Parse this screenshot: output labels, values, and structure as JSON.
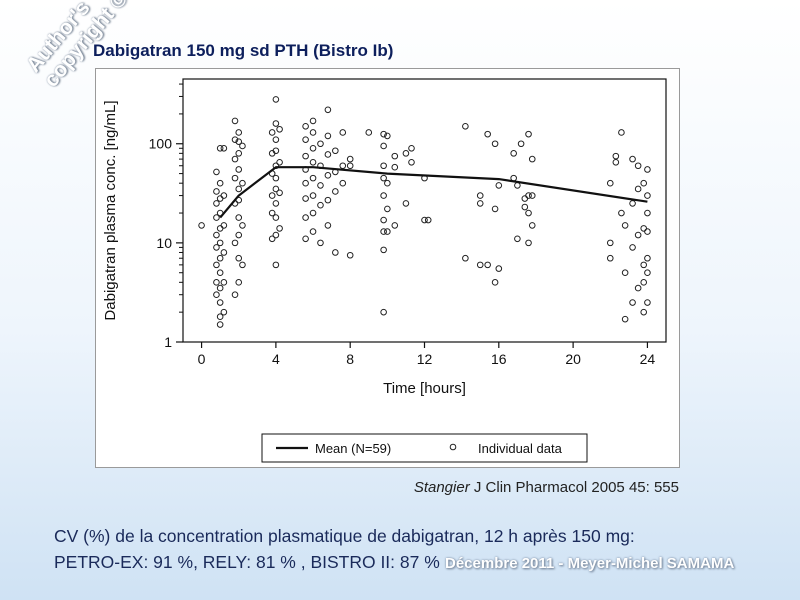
{
  "watermark": {
    "line1": "Author's",
    "line2": "copyright ©"
  },
  "slide_title": "Dabigatran 150 mg sd PTH (Bistro Ib)",
  "citation": {
    "author": "Stangier",
    "rest": " J Clin Pharmacol 2005 45: 555"
  },
  "cv_text": {
    "line1": "CV (%) de la concentration plasmatique de dabigatran, 12 h après 150 mg:",
    "line2": "PETRO-EX: 91 %, RELY: 81 % , BISTRO II: 87 %"
  },
  "footer_mark": "Décembre 2011 - Meyer-Michel SAMAMA",
  "colors": {
    "title": "#0d1f5c",
    "ink": "#111111"
  },
  "chart_data": {
    "type": "scatter",
    "title": "",
    "xlabel": "Time [hours]",
    "ylabel": "Dabigatran plasma conc. [ng/mL]",
    "xlim": [
      -1,
      25
    ],
    "ylim": [
      1,
      450
    ],
    "yscale": "log",
    "xticks": [
      0,
      4,
      8,
      12,
      16,
      20,
      24
    ],
    "xtick_labels": [
      "0",
      "4",
      "8",
      "12",
      "16",
      "20",
      "24"
    ],
    "yticks": [
      1,
      10,
      100
    ],
    "ytick_labels": [
      "1",
      "10",
      "100"
    ],
    "legend": {
      "position": "bottom",
      "entries": [
        {
          "label": "Mean (N=59)",
          "style": "line"
        },
        {
          "label": "Individual data",
          "style": "open-circle"
        }
      ]
    },
    "series": [
      {
        "name": "Mean (N=59)",
        "type": "line",
        "x": [
          1,
          2,
          4,
          6,
          10,
          16,
          24
        ],
        "y": [
          18,
          30,
          58,
          58,
          50,
          44,
          26
        ]
      },
      {
        "name": "Individual data",
        "type": "scatter",
        "points": [
          [
            0,
            15
          ],
          [
            0.8,
            3
          ],
          [
            0.8,
            4
          ],
          [
            0.8,
            6
          ],
          [
            0.8,
            9
          ],
          [
            0.8,
            12
          ],
          [
            0.8,
            18
          ],
          [
            0.8,
            25
          ],
          [
            0.8,
            33
          ],
          [
            0.8,
            52
          ],
          [
            1,
            1.5
          ],
          [
            1,
            1.8
          ],
          [
            1,
            2.5
          ],
          [
            1,
            3.5
          ],
          [
            1,
            5
          ],
          [
            1,
            7
          ],
          [
            1,
            10
          ],
          [
            1,
            14
          ],
          [
            1,
            20
          ],
          [
            1,
            28
          ],
          [
            1,
            40
          ],
          [
            1,
            90
          ],
          [
            1.2,
            2
          ],
          [
            1.2,
            4
          ],
          [
            1.2,
            8
          ],
          [
            1.2,
            15
          ],
          [
            1.2,
            30
          ],
          [
            1.2,
            90
          ],
          [
            1.8,
            3
          ],
          [
            1.8,
            10
          ],
          [
            1.8,
            25
          ],
          [
            1.8,
            45
          ],
          [
            1.8,
            70
          ],
          [
            1.8,
            110
          ],
          [
            1.8,
            170
          ],
          [
            2,
            4
          ],
          [
            2,
            7
          ],
          [
            2,
            12
          ],
          [
            2,
            18
          ],
          [
            2,
            27
          ],
          [
            2,
            35
          ],
          [
            2,
            55
          ],
          [
            2,
            80
          ],
          [
            2,
            105
          ],
          [
            2,
            130
          ],
          [
            2.2,
            6
          ],
          [
            2.2,
            15
          ],
          [
            2.2,
            40
          ],
          [
            2.2,
            95
          ],
          [
            3.8,
            11
          ],
          [
            3.8,
            20
          ],
          [
            3.8,
            30
          ],
          [
            3.8,
            50
          ],
          [
            3.8,
            80
          ],
          [
            3.8,
            130
          ],
          [
            4,
            6
          ],
          [
            4,
            12
          ],
          [
            4,
            18
          ],
          [
            4,
            25
          ],
          [
            4,
            35
          ],
          [
            4,
            45
          ],
          [
            4,
            60
          ],
          [
            4,
            85
          ],
          [
            4,
            110
          ],
          [
            4,
            160
          ],
          [
            4,
            280
          ],
          [
            4.2,
            14
          ],
          [
            4.2,
            32
          ],
          [
            4.2,
            65
          ],
          [
            4.2,
            140
          ],
          [
            5.6,
            11
          ],
          [
            5.6,
            18
          ],
          [
            5.6,
            28
          ],
          [
            5.6,
            40
          ],
          [
            5.6,
            55
          ],
          [
            5.6,
            75
          ],
          [
            5.6,
            110
          ],
          [
            5.6,
            150
          ],
          [
            6,
            13
          ],
          [
            6,
            20
          ],
          [
            6,
            30
          ],
          [
            6,
            45
          ],
          [
            6,
            65
          ],
          [
            6,
            90
          ],
          [
            6,
            130
          ],
          [
            6,
            170
          ],
          [
            6.4,
            10
          ],
          [
            6.4,
            24
          ],
          [
            6.4,
            38
          ],
          [
            6.4,
            60
          ],
          [
            6.4,
            100
          ],
          [
            6.8,
            15
          ],
          [
            6.8,
            27
          ],
          [
            6.8,
            48
          ],
          [
            6.8,
            78
          ],
          [
            6.8,
            120
          ],
          [
            6.8,
            220
          ],
          [
            7.2,
            8
          ],
          [
            7.2,
            33
          ],
          [
            7.2,
            52
          ],
          [
            7.2,
            85
          ],
          [
            7.6,
            40
          ],
          [
            7.6,
            60
          ],
          [
            7.6,
            130
          ],
          [
            8,
            7.5
          ],
          [
            8,
            60
          ],
          [
            8,
            70
          ],
          [
            9,
            130
          ],
          [
            9.8,
            2
          ],
          [
            9.8,
            8.5
          ],
          [
            9.8,
            13
          ],
          [
            9.8,
            17
          ],
          [
            9.8,
            30
          ],
          [
            9.8,
            45
          ],
          [
            9.8,
            60
          ],
          [
            9.8,
            95
          ],
          [
            9.8,
            125
          ],
          [
            10,
            13
          ],
          [
            10,
            22
          ],
          [
            10,
            40
          ],
          [
            10,
            120
          ],
          [
            10.4,
            15
          ],
          [
            10.4,
            58
          ],
          [
            10.4,
            75
          ],
          [
            11,
            25
          ],
          [
            11,
            80
          ],
          [
            11.3,
            65
          ],
          [
            11.3,
            90
          ],
          [
            12,
            17
          ],
          [
            12,
            45
          ],
          [
            12.2,
            17
          ],
          [
            14.2,
            7
          ],
          [
            14.2,
            150
          ],
          [
            15,
            6
          ],
          [
            15,
            25
          ],
          [
            15,
            30
          ],
          [
            15.4,
            6
          ],
          [
            15.4,
            125
          ],
          [
            15.8,
            4
          ],
          [
            15.8,
            22
          ],
          [
            15.8,
            100
          ],
          [
            16,
            5.5
          ],
          [
            16,
            38
          ],
          [
            16.8,
            45
          ],
          [
            16.8,
            80
          ],
          [
            17,
            11
          ],
          [
            17,
            38
          ],
          [
            17.2,
            100
          ],
          [
            17.4,
            23
          ],
          [
            17.4,
            28
          ],
          [
            17.6,
            10
          ],
          [
            17.6,
            20
          ],
          [
            17.6,
            30
          ],
          [
            17.6,
            125
          ],
          [
            17.8,
            15
          ],
          [
            17.8,
            70
          ],
          [
            17.8,
            30
          ],
          [
            22,
            7
          ],
          [
            22,
            10
          ],
          [
            22,
            40
          ],
          [
            22.3,
            65
          ],
          [
            22.3,
            75
          ],
          [
            22.6,
            20
          ],
          [
            22.6,
            130
          ],
          [
            22.8,
            1.7
          ],
          [
            22.8,
            5
          ],
          [
            22.8,
            15
          ],
          [
            23.2,
            2.5
          ],
          [
            23.2,
            9
          ],
          [
            23.2,
            25
          ],
          [
            23.2,
            70
          ],
          [
            23.5,
            3.5
          ],
          [
            23.5,
            12
          ],
          [
            23.5,
            35
          ],
          [
            23.5,
            60
          ],
          [
            23.8,
            2
          ],
          [
            23.8,
            4
          ],
          [
            23.8,
            6
          ],
          [
            23.8,
            14
          ],
          [
            23.8,
            40
          ],
          [
            24,
            2.5
          ],
          [
            24,
            5
          ],
          [
            24,
            7
          ],
          [
            24,
            13
          ],
          [
            24,
            20
          ],
          [
            24,
            30
          ],
          [
            24,
            55
          ]
        ]
      }
    ]
  }
}
